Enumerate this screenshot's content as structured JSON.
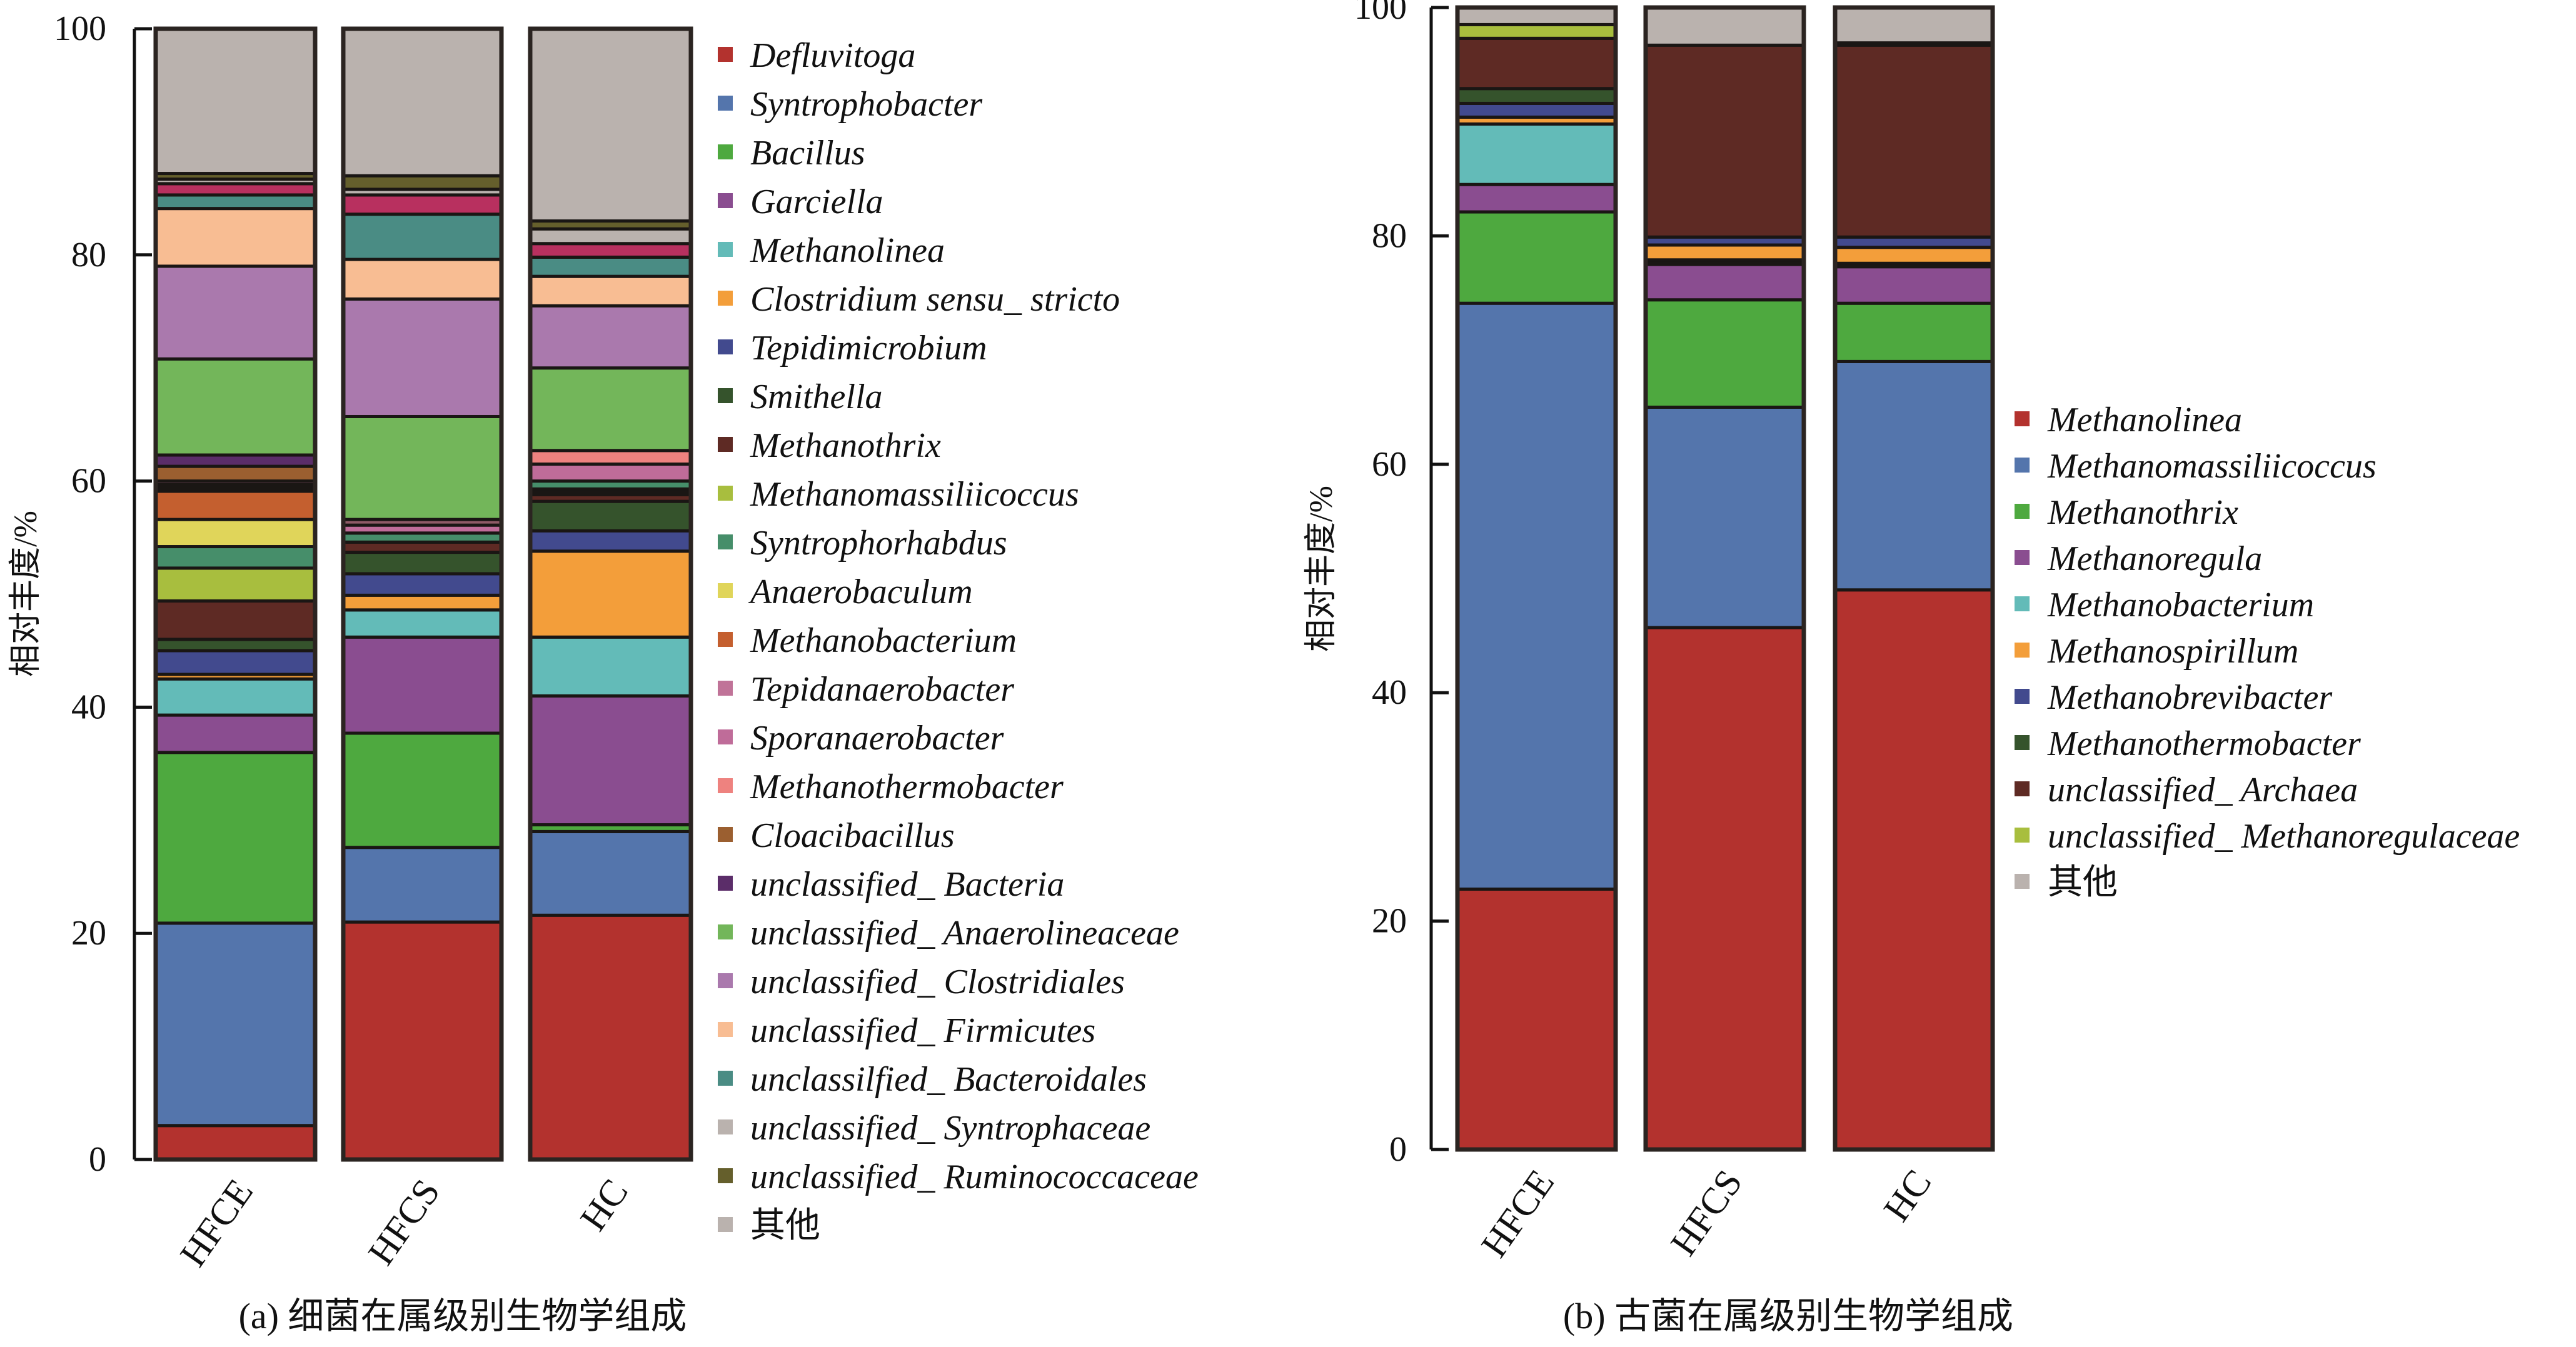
{
  "chart_data": [
    {
      "type": "bar",
      "stacked": true,
      "caption": "(a) 细菌在属级别生物学组成",
      "ylabel": "相对丰度/%",
      "xlabel": "",
      "ylim": [
        0,
        100
      ],
      "yticks": [
        0,
        20,
        40,
        60,
        80,
        100
      ],
      "grid": false,
      "legend_position": "right",
      "categories": [
        "HFCE",
        "HFCS",
        "HC"
      ],
      "legend": [
        {
          "name": "Defluvitoga",
          "color": "#B3322E"
        },
        {
          "name": "Syntrophobacter",
          "color": "#5475AC"
        },
        {
          "name": "Bacillus",
          "color": "#4EA93F"
        },
        {
          "name": "Garciella",
          "color": "#8A4D90"
        },
        {
          "name": "Methanolinea",
          "color": "#63BBB8"
        },
        {
          "name": "Clostridium sensu_ stricto",
          "color": "#F39E3A"
        },
        {
          "name": "Tepidimicrobium",
          "color": "#424A8E"
        },
        {
          "name": "Smithella",
          "color": "#35532C"
        },
        {
          "name": "Methanothrix",
          "color": "#5E2A24"
        },
        {
          "name": "Methanomassiliicoccus",
          "color": "#A8BE3E"
        },
        {
          "name": "Syntrophorhabdus",
          "color": "#468E6A"
        },
        {
          "name": "Anaerobaculum",
          "color": "#E0D55A"
        },
        {
          "name": "Methanobacterium",
          "color": "#C45F2F"
        },
        {
          "name": "Tepidanaerobacter",
          "color": "#C07398"
        },
        {
          "name": "Sporanaerobacter",
          "color": "#BF6C99"
        },
        {
          "name": "Methanothermobacter",
          "color": "#EE827F"
        },
        {
          "name": "Cloacibacillus",
          "color": "#9B5F30"
        },
        {
          "name": "unclassified_ Bacteria",
          "color": "#5B2D69"
        },
        {
          "name": "unclassified_ Anaerolineaceae",
          "color": "#73B65A"
        },
        {
          "name": "unclassified_ Clostridiales",
          "color": "#AA79AD"
        },
        {
          "name": "unclassified_ Firmicutes",
          "color": "#F8BD93"
        },
        {
          "name": "unclassilfied_ Bacteroidales",
          "color": "#4A8C84"
        },
        {
          "name": "unclassified_ Syntrophaceae",
          "color": "#BAB2AE"
        },
        {
          "name": "unclassified_ Ruminococcaceae",
          "color": "#655F2C"
        },
        {
          "name": "其他",
          "color": "#BAB2AE"
        }
      ],
      "extra_colors": {
        "crimson": "#B8305F",
        "black": "#1A1614",
        "mauve": "#8E5A66"
      },
      "stacks": [
        {
          "category": "HFCE",
          "segments": [
            {
              "name": "Defluvitoga",
              "value": 3.0
            },
            {
              "name": "Syntrophobacter",
              "value": 17.9
            },
            {
              "name": "Bacillus",
              "value": 15.1
            },
            {
              "name": "Garciella",
              "value": 3.3
            },
            {
              "name": "Methanolinea",
              "value": 3.2
            },
            {
              "name": "Clostridium sensu_ stricto",
              "value": 0.4
            },
            {
              "name": "Tepidimicrobium",
              "value": 2.1
            },
            {
              "name": "Smithella",
              "value": 1.0
            },
            {
              "name": "Methanothrix",
              "value": 3.4
            },
            {
              "name": "Methanomassiliicoccus",
              "value": 2.9
            },
            {
              "name": "Syntrophorhabdus",
              "value": 1.9
            },
            {
              "name": "Anaerobaculum",
              "value": 2.4
            },
            {
              "name": "Methanobacterium",
              "value": 2.5
            },
            {
              "name": "black",
              "value": 0.6
            },
            {
              "name": "Tepidanaerobacter",
              "value": 0.3
            },
            {
              "name": "Cloacibacillus",
              "value": 1.3
            },
            {
              "name": "unclassified_ Bacteria",
              "value": 1.0
            },
            {
              "name": "unclassified_ Anaerolineaceae",
              "value": 8.5
            },
            {
              "name": "unclassified_ Clostridiales",
              "value": 8.2
            },
            {
              "name": "unclassified_ Firmicutes",
              "value": 5.1
            },
            {
              "name": "unclassilfied_ Bacteroidales",
              "value": 1.2
            },
            {
              "name": "crimson",
              "value": 1.0
            },
            {
              "name": "unclassified_ Syntrophaceae",
              "value": 0.4
            },
            {
              "name": "unclassified_ Ruminococcaceae",
              "value": 0.5
            },
            {
              "name": "其他",
              "value": 12.8
            }
          ]
        },
        {
          "category": "HFCS",
          "segments": [
            {
              "name": "Defluvitoga",
              "value": 21.0
            },
            {
              "name": "Syntrophobacter",
              "value": 6.6
            },
            {
              "name": "Bacillus",
              "value": 10.1
            },
            {
              "name": "Garciella",
              "value": 8.5
            },
            {
              "name": "Methanolinea",
              "value": 2.4
            },
            {
              "name": "Clostridium sensu_ stricto",
              "value": 1.3
            },
            {
              "name": "Tepidimicrobium",
              "value": 1.9
            },
            {
              "name": "Smithella",
              "value": 1.9
            },
            {
              "name": "Methanothrix",
              "value": 0.9
            },
            {
              "name": "Syntrophorhabdus",
              "value": 0.8
            },
            {
              "name": "Sporanaerobacter",
              "value": 0.7
            },
            {
              "name": "mauve",
              "value": 0.5
            },
            {
              "name": "unclassified_ Anaerolineaceae",
              "value": 9.1
            },
            {
              "name": "unclassified_ Clostridiales",
              "value": 10.4
            },
            {
              "name": "unclassified_ Firmicutes",
              "value": 3.5
            },
            {
              "name": "unclassilfied_ Bacteroidales",
              "value": 4.0
            },
            {
              "name": "crimson",
              "value": 1.7
            },
            {
              "name": "unclassified_ Syntrophaceae",
              "value": 0.5
            },
            {
              "name": "unclassified_ Ruminococcaceae",
              "value": 1.2
            },
            {
              "name": "其他",
              "value": 13.0
            }
          ]
        },
        {
          "category": "HC",
          "segments": [
            {
              "name": "Defluvitoga",
              "value": 21.6
            },
            {
              "name": "Syntrophobacter",
              "value": 7.4
            },
            {
              "name": "Bacillus",
              "value": 0.6
            },
            {
              "name": "Garciella",
              "value": 11.4
            },
            {
              "name": "Methanolinea",
              "value": 5.2
            },
            {
              "name": "Clostridium sensu_ stricto",
              "value": 7.6
            },
            {
              "name": "Tepidimicrobium",
              "value": 1.8
            },
            {
              "name": "Smithella",
              "value": 2.6
            },
            {
              "name": "Methanothrix",
              "value": 0.6
            },
            {
              "name": "black",
              "value": 0.5
            },
            {
              "name": "Syntrophorhabdus",
              "value": 0.7
            },
            {
              "name": "Sporanaerobacter",
              "value": 1.5
            },
            {
              "name": "Methanothermobacter",
              "value": 1.2
            },
            {
              "name": "unclassified_ Anaerolineaceae",
              "value": 7.3
            },
            {
              "name": "unclassified_ Clostridiales",
              "value": 5.5
            },
            {
              "name": "unclassified_ Firmicutes",
              "value": 2.6
            },
            {
              "name": "unclassilfied_ Bacteroidales",
              "value": 1.7
            },
            {
              "name": "crimson",
              "value": 1.2
            },
            {
              "name": "unclassified_ Syntrophaceae",
              "value": 1.3
            },
            {
              "name": "unclassified_ Ruminococcaceae",
              "value": 0.7
            },
            {
              "name": "其他",
              "value": 17.0
            }
          ]
        }
      ]
    },
    {
      "type": "bar",
      "stacked": true,
      "caption": "(b) 古菌在属级别生物学组成",
      "ylabel": "相对丰度/%",
      "xlabel": "",
      "ylim": [
        0,
        100
      ],
      "yticks": [
        0,
        20,
        40,
        60,
        80,
        100
      ],
      "grid": false,
      "legend_position": "right",
      "categories": [
        "HFCE",
        "HFCS",
        "HC"
      ],
      "legend": [
        {
          "name": "Methanolinea",
          "color": "#B3322E"
        },
        {
          "name": "Methanomassiliicoccus",
          "color": "#5475AC"
        },
        {
          "name": "Methanothrix",
          "color": "#4EA93F"
        },
        {
          "name": "Methanoregula",
          "color": "#8A4D90"
        },
        {
          "name": "Methanobacterium",
          "color": "#63BBB8"
        },
        {
          "name": "Methanospirillum",
          "color": "#F39E3A"
        },
        {
          "name": "Methanobrevibacter",
          "color": "#424A8E"
        },
        {
          "name": "Methanothermobacter",
          "color": "#35532C"
        },
        {
          "name": "unclassified_ Archaea",
          "color": "#5E2A24"
        },
        {
          "name": "unclassified_ Methanoregulaceae",
          "color": "#A8BE3E"
        },
        {
          "name": "其他",
          "color": "#BAB2AE"
        }
      ],
      "extra_colors": {
        "black": "#1A1614"
      },
      "stacks": [
        {
          "category": "HFCE",
          "segments": [
            {
              "name": "Methanolinea",
              "value": 22.8
            },
            {
              "name": "Methanomassiliicoccus",
              "value": 51.3
            },
            {
              "name": "Methanothrix",
              "value": 8.0
            },
            {
              "name": "Methanoregula",
              "value": 2.4
            },
            {
              "name": "Methanobacterium",
              "value": 5.3
            },
            {
              "name": "Methanospirillum",
              "value": 0.6
            },
            {
              "name": "Methanobrevibacter",
              "value": 1.2
            },
            {
              "name": "Methanothermobacter",
              "value": 1.3
            },
            {
              "name": "unclassified_ Archaea",
              "value": 4.4
            },
            {
              "name": "unclassified_ Methanoregulaceae",
              "value": 1.2
            },
            {
              "name": "其他",
              "value": 1.5
            }
          ]
        },
        {
          "category": "HFCS",
          "segments": [
            {
              "name": "Methanolinea",
              "value": 45.7
            },
            {
              "name": "Methanomassiliicoccus",
              "value": 19.3
            },
            {
              "name": "Methanothrix",
              "value": 9.4
            },
            {
              "name": "Methanoregula",
              "value": 3.1
            },
            {
              "name": "black",
              "value": 0.4
            },
            {
              "name": "Methanospirillum",
              "value": 1.3
            },
            {
              "name": "Methanobrevibacter",
              "value": 0.7
            },
            {
              "name": "unclassified_ Archaea",
              "value": 16.8
            },
            {
              "name": "其他",
              "value": 3.3
            }
          ]
        },
        {
          "category": "HC",
          "segments": [
            {
              "name": "Methanolinea",
              "value": 49.0
            },
            {
              "name": "Methanomassiliicoccus",
              "value": 20.0
            },
            {
              "name": "Methanothrix",
              "value": 5.1
            },
            {
              "name": "Methanoregula",
              "value": 3.2
            },
            {
              "name": "black",
              "value": 0.3
            },
            {
              "name": "Methanospirillum",
              "value": 1.4
            },
            {
              "name": "Methanobrevibacter",
              "value": 0.9
            },
            {
              "name": "unclassified_ Archaea",
              "value": 16.8
            },
            {
              "name": "black",
              "value": 0.2
            },
            {
              "name": "其他",
              "value": 3.1
            }
          ]
        }
      ]
    }
  ]
}
